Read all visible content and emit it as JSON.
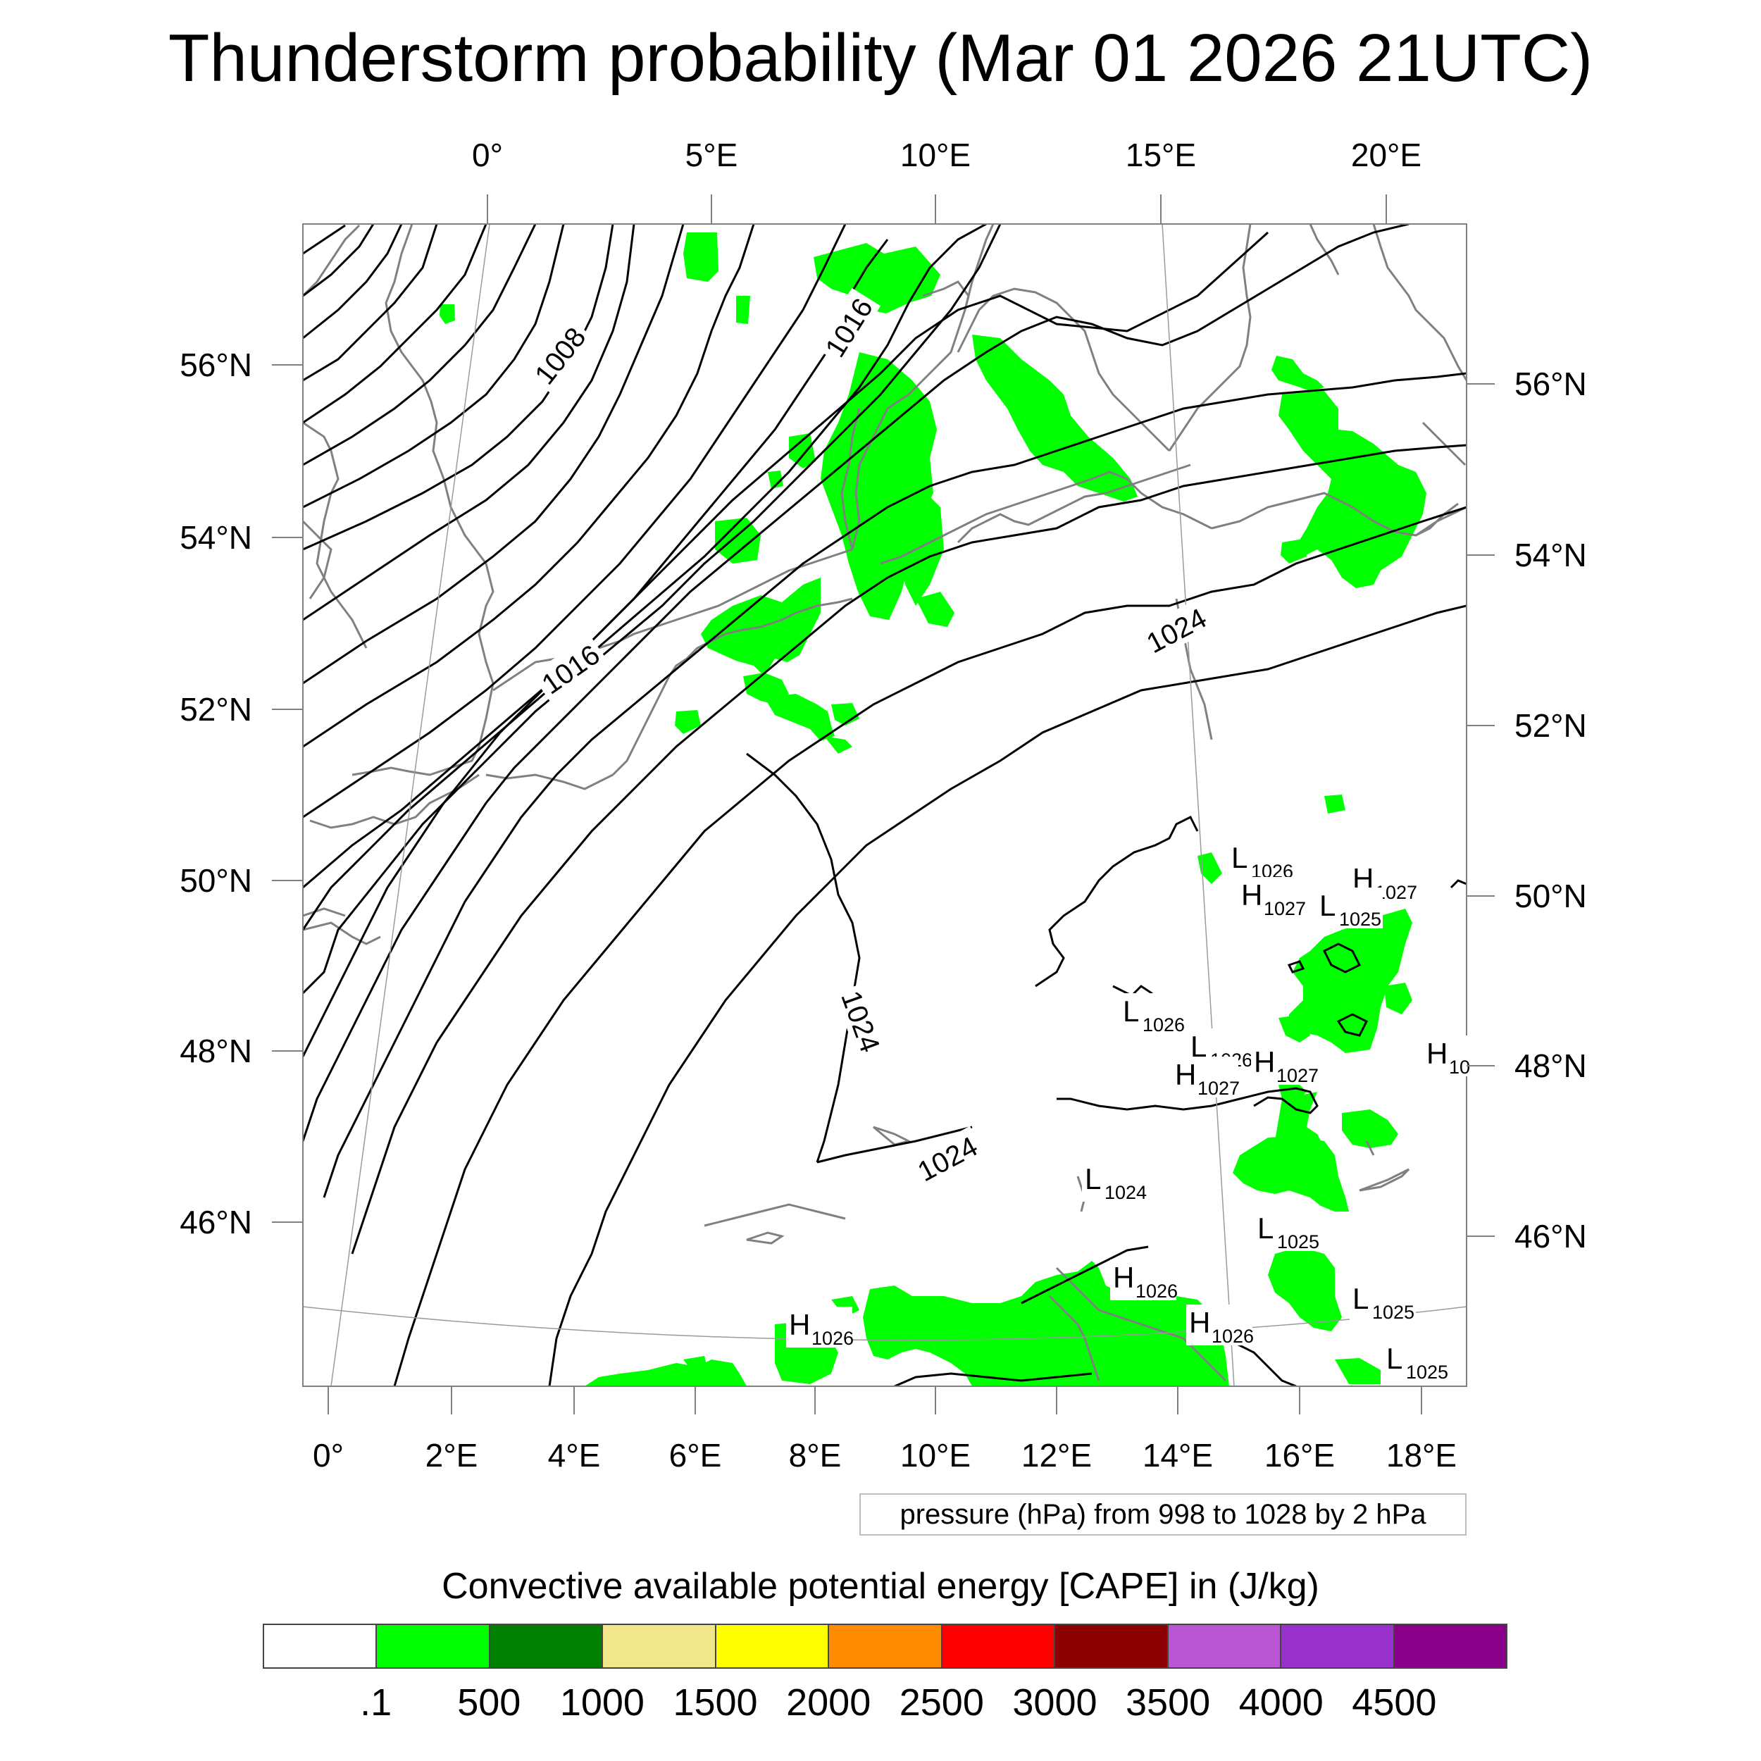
{
  "title": "Thunderstorm probability (Mar 01 2026 21UTC)",
  "top_axis_labels": [
    "0°",
    "5°E",
    "10°E",
    "15°E",
    "20°E"
  ],
  "bottom_axis_labels": [
    "0°",
    "2°E",
    "4°E",
    "6°E",
    "8°E",
    "10°E",
    "12°E",
    "14°E",
    "16°E",
    "18°E"
  ],
  "left_axis_labels": [
    "56°N",
    "54°N",
    "52°N",
    "50°N",
    "48°N",
    "46°N"
  ],
  "right_axis_labels": [
    "56°N",
    "54°N",
    "52°N",
    "50°N",
    "48°N",
    "46°N"
  ],
  "isobar_labels": [
    "1008",
    "1016",
    "1016",
    "1024",
    "1024",
    "1024"
  ],
  "pressure_centers": [
    {
      "letter": "L",
      "value": "1026"
    },
    {
      "letter": "H",
      "value": "1027"
    },
    {
      "letter": "H",
      "value": "1027"
    },
    {
      "letter": "L",
      "value": "1025"
    },
    {
      "letter": "L",
      "value": "1026"
    },
    {
      "letter": "L",
      "value": "1026"
    },
    {
      "letter": "H",
      "value": "1027"
    },
    {
      "letter": "H",
      "value": "1027"
    },
    {
      "letter": "H",
      "value": "10"
    },
    {
      "letter": "L",
      "value": "1024"
    },
    {
      "letter": "L",
      "value": "1025"
    },
    {
      "letter": "H",
      "value": "1026"
    },
    {
      "letter": "L",
      "value": "1025"
    },
    {
      "letter": "H",
      "value": "1026"
    },
    {
      "letter": "H",
      "value": "1026"
    },
    {
      "letter": "L",
      "value": "1025"
    }
  ],
  "pressure_note": "pressure (hPa) from 998 to 1028 by 2 hPa",
  "legend": {
    "title": "Convective available potential energy [CAPE] in (J/kg)",
    "colors": [
      "#ffffff",
      "#00ff00",
      "#008000",
      "#f0e68c",
      "#ffff00",
      "#ff8c00",
      "#ff0000",
      "#8b0000",
      "#ba55d3",
      "#9932cc",
      "#8b008b"
    ],
    "labels": [
      ".1",
      "500",
      "1000",
      "1500",
      "2000",
      "2500",
      "3000",
      "3500",
      "4000",
      "4500"
    ]
  },
  "colors": {
    "cape_fill": "#00ff00",
    "isobar": "#000000",
    "coastline": "#808080",
    "frame": "#808080"
  }
}
